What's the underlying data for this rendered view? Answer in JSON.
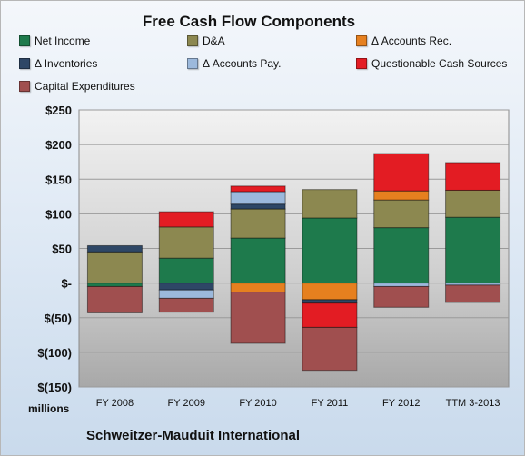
{
  "chart_data": {
    "type": "bar",
    "stacked": true,
    "title": "Free Cash Flow Components",
    "footer": "Schweitzer-Mauduit International",
    "units_label": "millions",
    "categories": [
      "FY 2008",
      "FY 2009",
      "FY 2010",
      "FY 2011",
      "FY 2012",
      "TTM 3-2013"
    ],
    "ylim": [
      -150,
      250
    ],
    "yticks": [
      250,
      200,
      150,
      100,
      50,
      0,
      -50,
      -100,
      -150
    ],
    "ytick_labels": [
      "$250",
      "$200",
      "$150",
      "$100",
      "$50",
      "$-",
      "$(50)",
      "$(100)",
      "$(150)"
    ],
    "grid": true,
    "legend_position": "top",
    "series": [
      {
        "name": "Net Income",
        "color": "#1e7a4c",
        "values": [
          -5,
          36,
          65,
          94,
          80,
          95
        ]
      },
      {
        "name": "D&A",
        "color": "#8c8850",
        "values": [
          45,
          45,
          42,
          41,
          40,
          39
        ]
      },
      {
        "name": "Δ Accounts Rec.",
        "color": "#e6801f",
        "values": [
          0,
          0,
          -13,
          -24,
          13,
          0
        ]
      },
      {
        "name": "Δ Inventories",
        "color": "#2e4766",
        "values": [
          9,
          -10,
          7,
          -5,
          0,
          0
        ]
      },
      {
        "name": "Δ Accounts Pay.",
        "color": "#9cb9dc",
        "values": [
          0,
          -12,
          18,
          0,
          -5,
          -3
        ]
      },
      {
        "name": "Questionable Cash Sources",
        "color": "#e31c23",
        "values": [
          0,
          22,
          8,
          -35,
          54,
          40
        ]
      },
      {
        "name": "Capital Expenditures",
        "color": "#a04f4f",
        "values": [
          -38,
          -20,
          -74,
          -62,
          -30,
          -25
        ]
      }
    ]
  }
}
